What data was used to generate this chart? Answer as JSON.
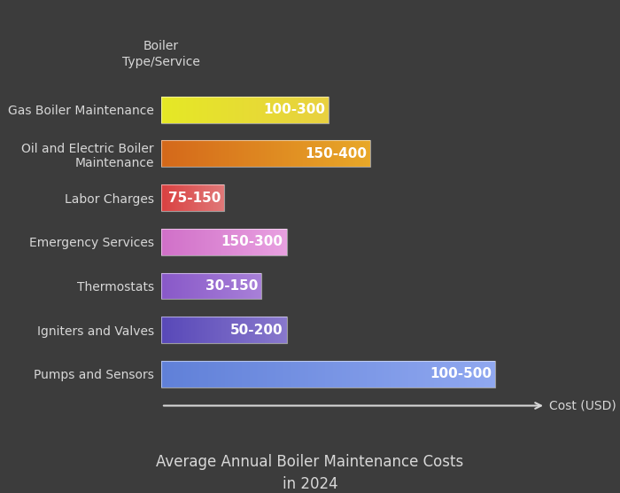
{
  "categories": [
    "Gas Boiler Maintenance",
    "Oil and Electric Boiler\nMaintenance",
    "Labor Charges",
    "Emergency Services",
    "Thermostats",
    "Igniters and Valves",
    "Pumps and Sensors"
  ],
  "labels": [
    "100-300",
    "150-400",
    "75-150",
    "150-300",
    "30-150",
    "50-200",
    "100-500"
  ],
  "bar_widths": [
    200,
    250,
    75,
    150,
    120,
    150,
    400
  ],
  "bar_colors_left": [
    "#e5e825",
    "#d4681a",
    "#d94040",
    "#d070c8",
    "#8858c8",
    "#5848b8",
    "#6080d8"
  ],
  "bar_colors_right": [
    "#e8d040",
    "#e8a828",
    "#e07878",
    "#e8a0e0",
    "#a880d8",
    "#8878cc",
    "#90a8f0"
  ],
  "background_color": "#3c3c3c",
  "text_color": "#d8d8d8",
  "label_text_color": "#ffffff",
  "ylabel": "Boiler\nType/Service",
  "xlabel": "Cost (USD)",
  "title": "Average Annual Boiler Maintenance Costs\nin 2024",
  "xlim_max": 460,
  "title_fontsize": 12,
  "axis_label_fontsize": 10,
  "bar_label_fontsize": 11,
  "tick_label_fontsize": 10,
  "bar_height": 0.6
}
